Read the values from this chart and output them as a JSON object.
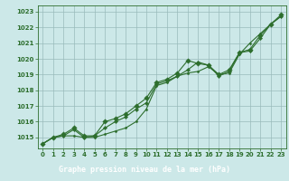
{
  "title": "Graphe pression niveau de la mer (hPa)",
  "x_hours": [
    0,
    1,
    2,
    3,
    4,
    5,
    6,
    7,
    8,
    9,
    10,
    11,
    12,
    13,
    14,
    15,
    16,
    17,
    18,
    19,
    20,
    21,
    22,
    23
  ],
  "series_main": [
    1014.6,
    1015.0,
    1015.1,
    1015.1,
    1015.0,
    1015.0,
    1015.2,
    1015.4,
    1015.6,
    1016.0,
    1016.8,
    1018.3,
    1018.5,
    1018.9,
    1019.1,
    1019.2,
    1019.5,
    1019.0,
    1019.1,
    1020.3,
    1021.0,
    1021.6,
    1022.2,
    1022.7
  ],
  "series_line2": [
    1014.6,
    1015.0,
    1015.1,
    1015.5,
    1015.0,
    1015.1,
    1015.6,
    1016.0,
    1016.3,
    1016.8,
    1017.2,
    1018.4,
    1018.6,
    1018.9,
    1019.3,
    1019.8,
    1019.6,
    1018.9,
    1019.2,
    1020.4,
    1020.5,
    1021.3,
    1022.2,
    1022.7
  ],
  "series_line3": [
    1014.6,
    1015.0,
    1015.2,
    1015.6,
    1015.1,
    1015.1,
    1016.0,
    1016.2,
    1016.5,
    1017.0,
    1017.5,
    1018.5,
    1018.7,
    1019.1,
    1019.9,
    1019.7,
    1019.6,
    1019.0,
    1019.3,
    1020.4,
    1020.6,
    1021.5,
    1022.2,
    1022.8
  ],
  "line_color": "#2d6e2d",
  "bg_color": "#cce8e8",
  "grid_color": "#99bbbb",
  "title_bg": "#336633",
  "title_color": "#ffffff",
  "ylim": [
    1014.3,
    1023.4
  ],
  "yticks": [
    1015,
    1016,
    1017,
    1018,
    1019,
    1020,
    1021,
    1022,
    1023
  ],
  "xticks": [
    0,
    1,
    2,
    3,
    4,
    5,
    6,
    7,
    8,
    9,
    10,
    11,
    12,
    13,
    14,
    15,
    16,
    17,
    18,
    19,
    20,
    21,
    22,
    23
  ],
  "title_fontsize": 6.0,
  "tick_fontsize": 5.0
}
